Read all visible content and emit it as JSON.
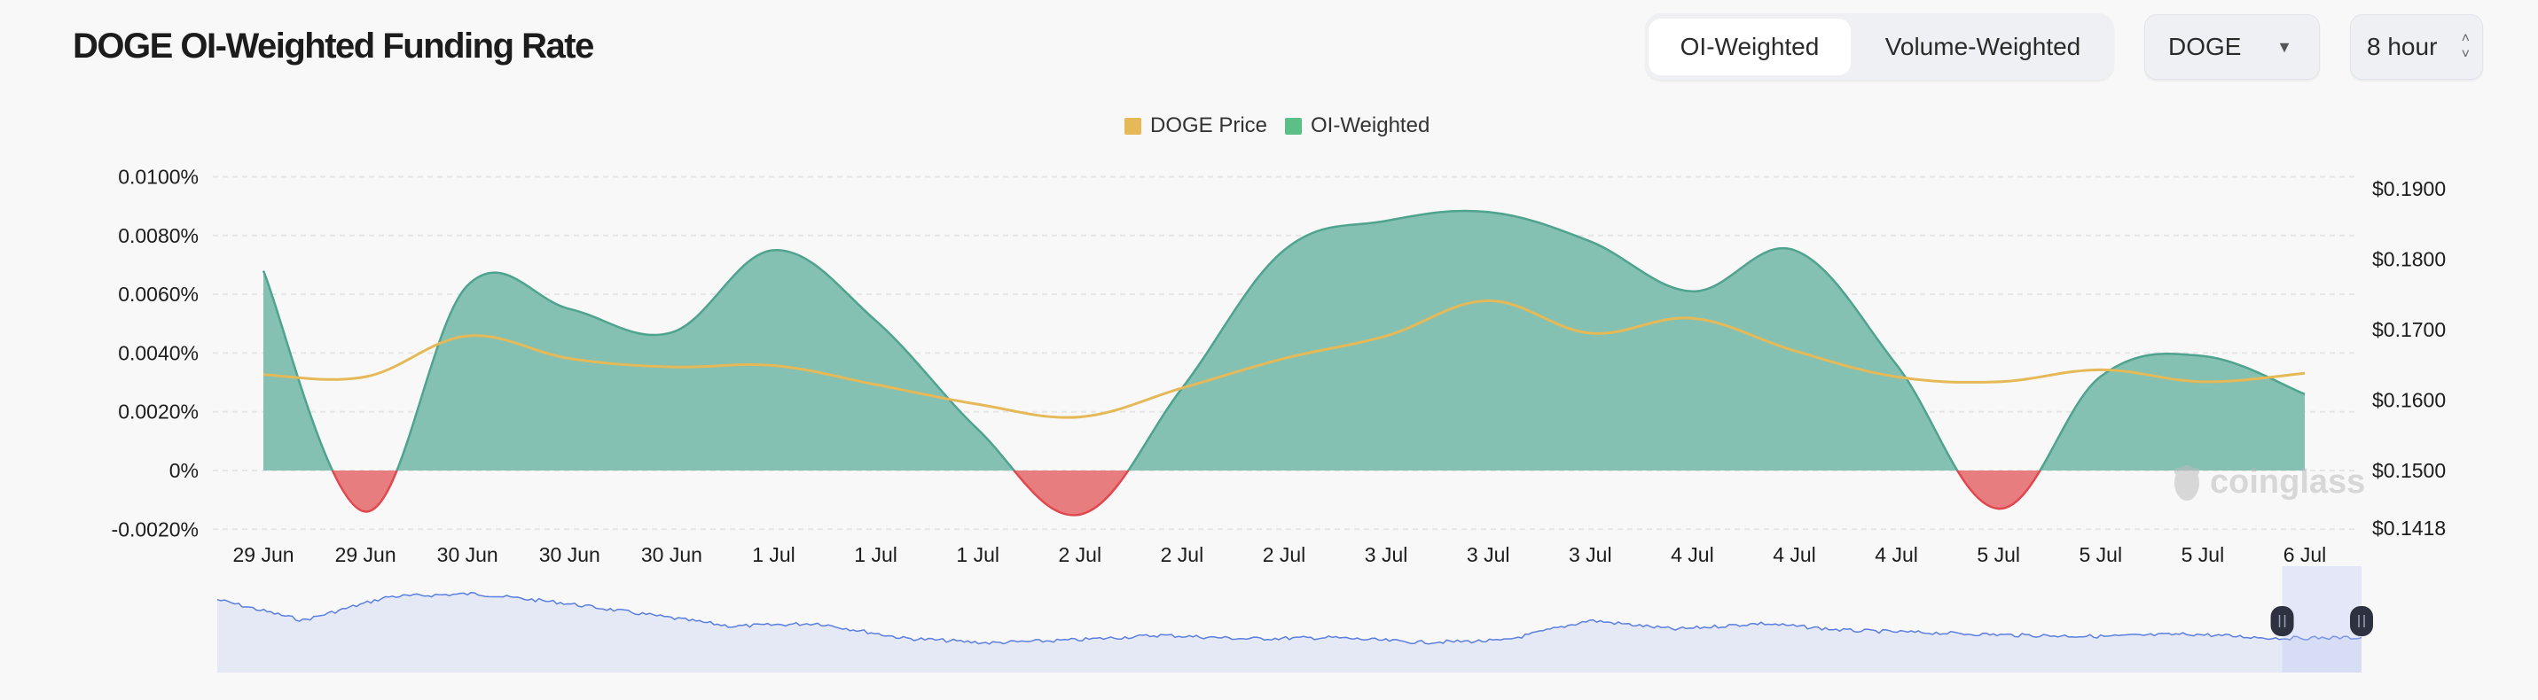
{
  "header": {
    "title": "DOGE OI-Weighted Funding Rate",
    "toggle": [
      "OI-Weighted",
      "Volume-Weighted"
    ],
    "active_toggle": "OI-Weighted",
    "coin_select": "DOGE",
    "interval_select": "8 hour"
  },
  "watermark": "coinglass",
  "colors": {
    "positive": "#84c1b2",
    "positive_line": "#4fa38f",
    "negative": "#e77d7f",
    "negative_line": "#e0474f",
    "price": "#e5b957",
    "navigator_line": "#5b7fe0",
    "navigator_fill": "#e5e9f5"
  },
  "chart_data": {
    "type": "area",
    "legend": [
      "DOGE Price",
      "OI-Weighted"
    ],
    "legend_position": "top-center",
    "categories": [
      "29 Jun",
      "29 Jun",
      "30 Jun",
      "30 Jun",
      "30 Jun",
      "1 Jul",
      "1 Jul",
      "1 Jul",
      "2 Jul",
      "2 Jul",
      "2 Jul",
      "3 Jul",
      "3 Jul",
      "3 Jul",
      "4 Jul",
      "4 Jul",
      "4 Jul",
      "5 Jul",
      "5 Jul",
      "5 Jul",
      "6 Jul"
    ],
    "series": [
      {
        "name": "OI-Weighted",
        "axis": "left",
        "unit": "%",
        "values": [
          0.0068,
          -0.0014,
          0.0063,
          0.0055,
          0.0047,
          0.0075,
          0.0051,
          0.0014,
          -0.0015,
          0.0028,
          0.0075,
          0.0085,
          0.0088,
          0.0078,
          0.0061,
          0.0075,
          0.0036,
          -0.0013,
          0.0032,
          0.0039,
          0.0026
        ]
      },
      {
        "name": "DOGE Price",
        "axis": "right",
        "unit": "$",
        "values": [
          0.1636,
          0.1633,
          0.1691,
          0.1659,
          0.1647,
          0.1649,
          0.1622,
          0.1594,
          0.1576,
          0.1617,
          0.1659,
          0.1691,
          0.1741,
          0.1695,
          0.1716,
          0.167,
          0.1633,
          0.1626,
          0.1643,
          0.1626,
          0.1638
        ]
      }
    ],
    "left_axis": {
      "ticks": [
        "0.0100%",
        "0.0080%",
        "0.0060%",
        "0.0040%",
        "0.0020%",
        "0%",
        "-0.0020%"
      ],
      "tick_values": [
        0.01,
        0.008,
        0.006,
        0.004,
        0.002,
        0,
        -0.002
      ],
      "range": [
        -0.002,
        0.01
      ]
    },
    "right_axis": {
      "ticks": [
        "$0.1900",
        "$0.1800",
        "$0.1700",
        "$0.1600",
        "$0.1500",
        "$0.1418"
      ],
      "tick_values": [
        0.19,
        0.18,
        0.17,
        0.16,
        0.15,
        0.1418
      ],
      "range": [
        0.1418,
        0.19
      ]
    },
    "grid": true,
    "navigator_window": [
      0.963,
      1.0
    ]
  }
}
